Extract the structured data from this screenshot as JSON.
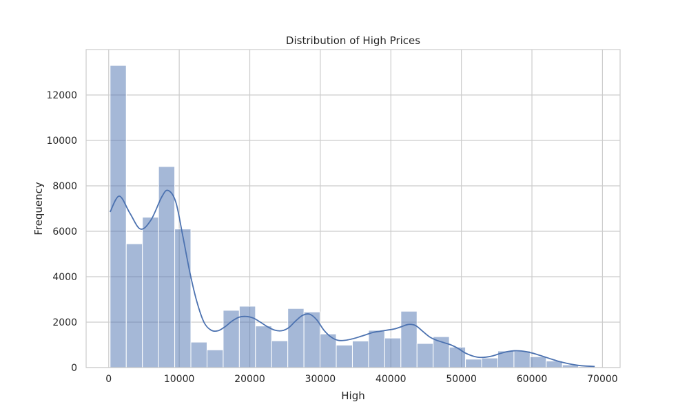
{
  "chart_data": {
    "type": "bar",
    "subtype": "histogram-with-kde",
    "title": "Distribution of High Prices",
    "xlabel": "High",
    "ylabel": "Frequency",
    "xlim": [
      -3200,
      72500
    ],
    "ylim": [
      0,
      14000
    ],
    "x_ticks": [
      0,
      10000,
      20000,
      30000,
      40000,
      50000,
      60000,
      70000
    ],
    "y_ticks": [
      0,
      2000,
      4000,
      6000,
      8000,
      10000,
      12000
    ],
    "grid": true,
    "bins": [
      {
        "x0": 200,
        "x1": 2490,
        "count": 13300
      },
      {
        "x0": 2490,
        "x1": 4780,
        "count": 5450
      },
      {
        "x0": 4780,
        "x1": 7070,
        "count": 6620
      },
      {
        "x0": 7070,
        "x1": 9360,
        "count": 8850
      },
      {
        "x0": 9360,
        "x1": 11650,
        "count": 6100
      },
      {
        "x0": 11650,
        "x1": 13940,
        "count": 1120
      },
      {
        "x0": 13940,
        "x1": 16230,
        "count": 780
      },
      {
        "x0": 16230,
        "x1": 18520,
        "count": 2520
      },
      {
        "x0": 18520,
        "x1": 20810,
        "count": 2700
      },
      {
        "x0": 20810,
        "x1": 23100,
        "count": 1830
      },
      {
        "x0": 23100,
        "x1": 25390,
        "count": 1180
      },
      {
        "x0": 25390,
        "x1": 27680,
        "count": 2600
      },
      {
        "x0": 27680,
        "x1": 29970,
        "count": 2450
      },
      {
        "x0": 29970,
        "x1": 32260,
        "count": 1480
      },
      {
        "x0": 32260,
        "x1": 34550,
        "count": 990
      },
      {
        "x0": 34550,
        "x1": 36840,
        "count": 1170
      },
      {
        "x0": 36840,
        "x1": 39130,
        "count": 1640
      },
      {
        "x0": 39130,
        "x1": 41420,
        "count": 1300
      },
      {
        "x0": 41420,
        "x1": 43710,
        "count": 2480
      },
      {
        "x0": 43710,
        "x1": 46000,
        "count": 1060
      },
      {
        "x0": 46000,
        "x1": 48290,
        "count": 1360
      },
      {
        "x0": 48290,
        "x1": 50580,
        "count": 900
      },
      {
        "x0": 50580,
        "x1": 52870,
        "count": 370
      },
      {
        "x0": 52870,
        "x1": 55160,
        "count": 420
      },
      {
        "x0": 55160,
        "x1": 57450,
        "count": 730
      },
      {
        "x0": 57450,
        "x1": 59740,
        "count": 730
      },
      {
        "x0": 59740,
        "x1": 62030,
        "count": 480
      },
      {
        "x0": 62030,
        "x1": 64320,
        "count": 290
      },
      {
        "x0": 64320,
        "x1": 66610,
        "count": 120
      },
      {
        "x0": 66610,
        "x1": 68900,
        "count": 40
      }
    ],
    "kde": {
      "x": [
        200,
        1500,
        3000,
        4500,
        6000,
        7500,
        8400,
        9500,
        10500,
        11500,
        12500,
        13500,
        14500,
        15500,
        16500,
        17500,
        18500,
        19500,
        20500,
        21500,
        22500,
        23500,
        24500,
        25500,
        26500,
        27500,
        28500,
        29500,
        30500,
        31500,
        32500,
        33500,
        34500,
        35500,
        36500,
        37500,
        38500,
        39500,
        40500,
        41500,
        42500,
        43500,
        44500,
        45500,
        46500,
        47500,
        48500,
        49500,
        50500,
        51500,
        52500,
        53500,
        54500,
        55500,
        56500,
        57500,
        58500,
        59500,
        60500,
        61500,
        62500,
        63500,
        64500,
        65500,
        66500,
        67500,
        68900
      ],
      "y": [
        6850,
        7550,
        6800,
        6100,
        6500,
        7500,
        7800,
        7300,
        5800,
        4200,
        2900,
        2000,
        1650,
        1620,
        1800,
        2050,
        2220,
        2250,
        2180,
        2000,
        1800,
        1650,
        1620,
        1750,
        2050,
        2300,
        2350,
        2100,
        1650,
        1350,
        1200,
        1200,
        1260,
        1350,
        1450,
        1550,
        1600,
        1650,
        1700,
        1800,
        1900,
        1850,
        1600,
        1350,
        1200,
        1100,
        1000,
        850,
        650,
        520,
        450,
        460,
        520,
        620,
        700,
        740,
        730,
        680,
        600,
        500,
        400,
        300,
        220,
        150,
        100,
        70,
        50
      ],
      "color": "#4c72b0"
    },
    "bar_color": "#4c72b0"
  }
}
